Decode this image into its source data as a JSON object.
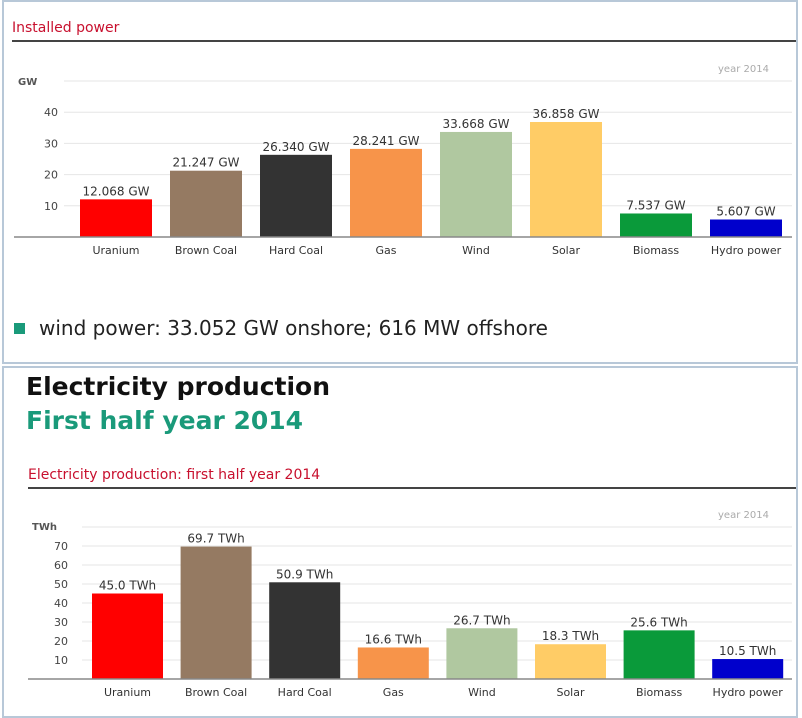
{
  "installed": {
    "heading": "Installed power",
    "note": "wind power: 33.052 GW onshore; 616 MW offshore",
    "note_color": "#1a9a7a"
  },
  "production": {
    "title": "Electricity production",
    "subtitle": "First half year 2014",
    "subtitle_color": "#1a9a7a",
    "heading": "Electricity production: first half year 2014"
  },
  "chart_data": [
    {
      "type": "bar",
      "title": "Installed power",
      "ylabel": "GW",
      "annotation": "year 2014",
      "ylim": [
        0,
        50
      ],
      "yticks": [
        10,
        20,
        30,
        40
      ],
      "categories": [
        "Uranium",
        "Brown Coal",
        "Hard Coal",
        "Gas",
        "Wind",
        "Solar",
        "Biomass",
        "Hydro power"
      ],
      "values": [
        12.068,
        21.247,
        26.34,
        28.241,
        33.668,
        36.858,
        7.537,
        5.607
      ],
      "labels": [
        "12.068 GW",
        "21.247 GW",
        "26.340 GW",
        "28.241 GW",
        "33.668 GW",
        "36.858 GW",
        "7.537 GW",
        "5.607 GW"
      ],
      "colors": [
        "#ff0000",
        "#957a62",
        "#333333",
        "#f7944a",
        "#b0c8a0",
        "#ffcc66",
        "#0a9a3a",
        "#0000cc"
      ]
    },
    {
      "type": "bar",
      "title": "Electricity production: first half year 2014",
      "ylabel": "TWh",
      "annotation": "year 2014",
      "ylim": [
        0,
        80
      ],
      "yticks": [
        10,
        20,
        30,
        40,
        50,
        60,
        70
      ],
      "categories": [
        "Uranium",
        "Brown Coal",
        "Hard Coal",
        "Gas",
        "Wind",
        "Solar",
        "Biomass",
        "Hydro power"
      ],
      "values": [
        45.0,
        69.7,
        50.9,
        16.6,
        26.7,
        18.3,
        25.6,
        10.5
      ],
      "labels": [
        "45.0 TWh",
        "69.7 TWh",
        "50.9 TWh",
        "16.6 TWh",
        "26.7 TWh",
        "18.3 TWh",
        "25.6 TWh",
        "10.5 TWh"
      ],
      "colors": [
        "#ff0000",
        "#957a62",
        "#333333",
        "#f7944a",
        "#b0c8a0",
        "#ffcc66",
        "#0a9a3a",
        "#0000cc"
      ]
    }
  ]
}
